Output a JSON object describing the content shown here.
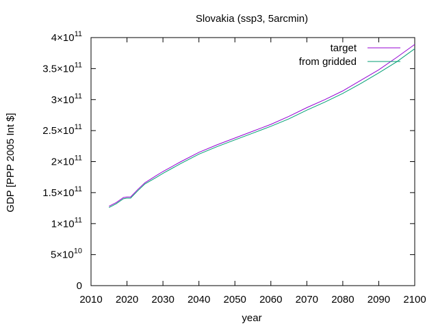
{
  "chart_data": {
    "type": "line",
    "title": "Slovakia (ssp3, 5arcmin)",
    "xlabel": "year",
    "ylabel": "GDP [PPP 2005 Int $]",
    "xlim": [
      2010,
      2100
    ],
    "ylim": [
      0,
      400000000000
    ],
    "x_ticks": [
      2010,
      2020,
      2030,
      2040,
      2050,
      2060,
      2070,
      2080,
      2090,
      2100
    ],
    "y_ticks": [
      {
        "value": 0,
        "mantissa": "0",
        "exp": ""
      },
      {
        "value": 50000000000,
        "mantissa": "5×10",
        "exp": "10"
      },
      {
        "value": 100000000000,
        "mantissa": "1×10",
        "exp": "11"
      },
      {
        "value": 150000000000,
        "mantissa": "1.5×10",
        "exp": "11"
      },
      {
        "value": 200000000000,
        "mantissa": "2×10",
        "exp": "11"
      },
      {
        "value": 250000000000,
        "mantissa": "2.5×10",
        "exp": "11"
      },
      {
        "value": 300000000000,
        "mantissa": "3×10",
        "exp": "11"
      },
      {
        "value": 350000000000,
        "mantissa": "3.5×10",
        "exp": "11"
      },
      {
        "value": 400000000000,
        "mantissa": "4×10",
        "exp": "11"
      }
    ],
    "legend_position": "top-right",
    "grid": false,
    "series": [
      {
        "name": "target",
        "color": "#9400d3",
        "x": [
          2015,
          2017,
          2019,
          2020,
          2021,
          2023,
          2025,
          2028,
          2030,
          2035,
          2040,
          2045,
          2050,
          2055,
          2060,
          2065,
          2070,
          2075,
          2080,
          2085,
          2090,
          2095,
          2100
        ],
        "y": [
          128000000000,
          134000000000,
          142000000000,
          143000000000,
          143000000000,
          155000000000,
          166000000000,
          177000000000,
          184000000000,
          200000000000,
          215000000000,
          227000000000,
          238000000000,
          249000000000,
          260000000000,
          273000000000,
          287000000000,
          300000000000,
          314000000000,
          331000000000,
          348000000000,
          368000000000,
          389000000000
        ]
      },
      {
        "name": "from gridded",
        "color": "#009e73",
        "x": [
          2015,
          2017,
          2019,
          2020,
          2021,
          2023,
          2025,
          2028,
          2030,
          2035,
          2040,
          2045,
          2050,
          2055,
          2060,
          2065,
          2070,
          2075,
          2080,
          2085,
          2090,
          2095,
          2100
        ],
        "y": [
          126000000000,
          132000000000,
          140000000000,
          141000000000,
          141000000000,
          153000000000,
          164000000000,
          174000000000,
          181000000000,
          197000000000,
          212000000000,
          224000000000,
          235000000000,
          246000000000,
          257000000000,
          269000000000,
          283000000000,
          296000000000,
          310000000000,
          326000000000,
          343000000000,
          361000000000,
          382000000000
        ]
      }
    ]
  }
}
